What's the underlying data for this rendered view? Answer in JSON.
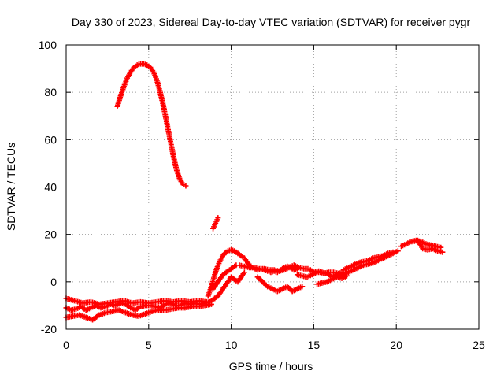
{
  "chart_data": {
    "type": "scatter",
    "title": "Day 330 of 2023, Sidereal Day-to-day VTEC variation (SDTVAR) for receiver pygr",
    "xlabel": "GPS time / hours",
    "ylabel": "SDTVAR / TECUs",
    "xlim": [
      0,
      25
    ],
    "ylim": [
      -20,
      100
    ],
    "xticks": [
      0,
      5,
      10,
      15,
      20,
      25
    ],
    "yticks": [
      -20,
      0,
      20,
      40,
      60,
      80,
      100
    ],
    "grid": true,
    "marker": "+",
    "color": "#ff0000",
    "series": [
      {
        "name": "peak-arc",
        "x": [
          3.1,
          3.3,
          3.5,
          3.7,
          3.9,
          4.1,
          4.3,
          4.5,
          4.7,
          4.9,
          5.1,
          5.3,
          5.5,
          5.7,
          5.9,
          6.1,
          6.3,
          6.5,
          6.7,
          6.9,
          7.1,
          7.25
        ],
        "y": [
          74,
          78.5,
          82.5,
          86,
          88.5,
          90.5,
          91.5,
          92,
          92,
          91.5,
          90.5,
          88.5,
          85,
          80,
          74,
          67,
          60,
          53,
          47,
          43,
          41,
          40.5
        ]
      },
      {
        "name": "fragment-9h",
        "x": [
          8.9,
          9.0,
          9.1,
          9.2
        ],
        "y": [
          22.5,
          24,
          25.5,
          27
        ]
      },
      {
        "name": "lower-track",
        "x": [
          0,
          0.3,
          0.6,
          0.9,
          1.2,
          1.5,
          1.8,
          2.1,
          2.4,
          2.7,
          3.0,
          3.3,
          3.6,
          3.9,
          4.2,
          4.5,
          4.8,
          5.1,
          5.4,
          5.7,
          6.0,
          6.3,
          6.6,
          6.9,
          7.2,
          7.5,
          7.8,
          8.1,
          8.4,
          8.7,
          9.0
        ],
        "y": [
          -11,
          -12,
          -11.5,
          -10.5,
          -12,
          -11,
          -10,
          -11,
          -10.5,
          -9.5,
          -10,
          -9,
          -9.5,
          -11,
          -12,
          -10.5,
          -10,
          -10,
          -10.5,
          -11,
          -9.5,
          -9,
          -10,
          -10,
          -9,
          -9.5,
          -9,
          -9.5,
          -9,
          -8.5,
          -7
        ]
      },
      {
        "name": "lower-track-b",
        "x": [
          0,
          0.4,
          0.8,
          1.2,
          1.6,
          2.0,
          2.4,
          2.8,
          3.2,
          3.6,
          4.0,
          4.4,
          4.8,
          5.2,
          5.6,
          6.0,
          6.4,
          6.8,
          7.2,
          7.6,
          8.0,
          8.4,
          8.8
        ],
        "y": [
          -15,
          -14.5,
          -14,
          -15,
          -16,
          -14,
          -13,
          -12.5,
          -12,
          -13,
          -14,
          -14.5,
          -13.5,
          -12.5,
          -12,
          -12,
          -11.5,
          -11,
          -11,
          -10.5,
          -10.5,
          -10,
          -9.5
        ]
      },
      {
        "name": "lower-track-c",
        "x": [
          0,
          0.5,
          1.0,
          1.5,
          2.0,
          2.5,
          3.0,
          3.5,
          4.0,
          4.5,
          5.0,
          5.5,
          6.0,
          6.5,
          7.0,
          7.5,
          8.0,
          8.5
        ],
        "y": [
          -7,
          -8,
          -9,
          -8.5,
          -9.5,
          -9,
          -8.5,
          -8,
          -9,
          -8.5,
          -9,
          -8.5,
          -8,
          -8.5,
          -8,
          -8.5,
          -8,
          -8.5
        ]
      },
      {
        "name": "rise-10h",
        "x": [
          8.6,
          8.8,
          9.0,
          9.2,
          9.4,
          9.6,
          9.8,
          10.0,
          10.2,
          10.4,
          10.6,
          10.8,
          11.0,
          11.2,
          11.4,
          11.6,
          11.8,
          12.0,
          12.2,
          12.4,
          12.6,
          12.8,
          13.0,
          13.2,
          13.4,
          13.6,
          13.8,
          14.0
        ],
        "y": [
          -6,
          -2,
          3,
          7,
          10,
          12,
          13,
          13.5,
          13,
          12,
          11,
          10,
          8,
          6.5,
          5.5,
          5,
          5.5,
          5,
          4.5,
          4,
          4.5,
          4,
          5,
          6,
          6.5,
          6,
          5,
          5.5
        ]
      },
      {
        "name": "dip-10h",
        "x": [
          9.0,
          9.2,
          9.4,
          9.6,
          9.8,
          10.0,
          10.2,
          10.4,
          10.6,
          10.8
        ],
        "y": [
          -7,
          -6,
          -4,
          -2,
          0,
          2,
          1,
          0,
          2,
          4
        ]
      },
      {
        "name": "loop-9h",
        "x": [
          8.9,
          9.1,
          9.3,
          9.5,
          9.7,
          9.9,
          10.1,
          10.3
        ],
        "y": [
          -3,
          -1,
          1,
          3,
          4,
          5,
          6,
          7
        ]
      },
      {
        "name": "dip-12h",
        "x": [
          11.6,
          11.9,
          12.2,
          12.5,
          12.8,
          13.1,
          13.4,
          13.7,
          14.0,
          14.3
        ],
        "y": [
          2,
          0,
          -2,
          -3,
          -4,
          -3,
          -2,
          -4,
          -3,
          -2
        ]
      },
      {
        "name": "upper-mid",
        "x": [
          10.5,
          10.8,
          11.1,
          11.4,
          11.7,
          12.0,
          12.3,
          12.6,
          12.9,
          13.2,
          13.5,
          13.8,
          14.1,
          14.4,
          14.7,
          15.0,
          15.3,
          15.6,
          15.9,
          16.2,
          16.5,
          16.8
        ],
        "y": [
          7,
          6.5,
          6,
          6,
          5.5,
          5.5,
          5,
          5,
          4.5,
          5,
          6,
          7,
          6,
          5.5,
          5.5,
          4,
          4.5,
          3.5,
          4,
          4,
          3.5,
          3
        ]
      },
      {
        "name": "mid-15h",
        "x": [
          14.0,
          14.3,
          14.6,
          14.9,
          15.2,
          15.5,
          15.8,
          16.1,
          16.4,
          16.7
        ],
        "y": [
          3,
          2.5,
          2,
          3,
          4,
          4,
          3.5,
          2,
          3,
          4
        ]
      },
      {
        "name": "dip-16h",
        "x": [
          15.2,
          15.5,
          15.8,
          16.1,
          16.4,
          16.7,
          17.0
        ],
        "y": [
          -1,
          -0.5,
          0,
          1,
          2,
          1.5,
          2.5
        ]
      },
      {
        "name": "rise-18h",
        "x": [
          16.5,
          16.8,
          17.1,
          17.4,
          17.7,
          18.0,
          18.3,
          18.6,
          18.9,
          19.2,
          19.5,
          19.8,
          20.1
        ],
        "y": [
          2,
          3,
          4,
          5,
          6,
          7,
          7.5,
          8,
          9,
          10,
          11,
          12,
          13
        ]
      },
      {
        "name": "rise-18h-b",
        "x": [
          16.8,
          17.1,
          17.4,
          17.7,
          18.0,
          18.3,
          18.6,
          18.9,
          19.2,
          19.5,
          19.8
        ],
        "y": [
          5,
          6,
          7,
          8,
          8.5,
          9,
          10,
          10.5,
          11,
          12,
          12.5
        ]
      },
      {
        "name": "top-right",
        "x": [
          20.3,
          20.6,
          20.9,
          21.2,
          21.5,
          21.8,
          22.1,
          22.4,
          22.7
        ],
        "y": [
          15,
          16,
          17,
          17.5,
          17,
          16,
          15.5,
          15,
          14.5
        ]
      },
      {
        "name": "top-right-b",
        "x": [
          21.0,
          21.3,
          21.6,
          21.9,
          22.2,
          22.5,
          22.8
        ],
        "y": [
          17,
          17.5,
          14,
          13.5,
          14,
          13,
          12.5
        ]
      }
    ]
  }
}
